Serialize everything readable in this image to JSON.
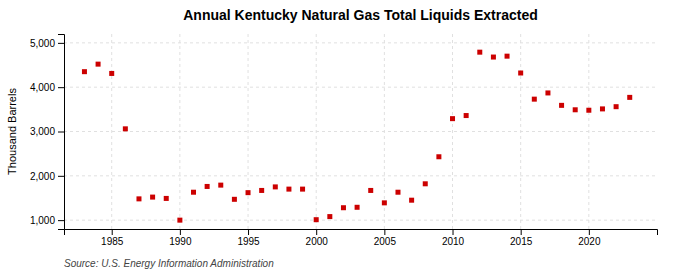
{
  "chart_data": {
    "type": "scatter",
    "title": "Annual Kentucky Natural Gas Total Liquids Extracted",
    "ylabel": "Thousand Barrels",
    "source": "Source: U.S. Energy Information Administration",
    "x": [
      1983,
      1984,
      1985,
      1986,
      1987,
      1988,
      1989,
      1990,
      1991,
      1992,
      1993,
      1994,
      1995,
      1996,
      1997,
      1998,
      1999,
      2000,
      2001,
      2002,
      2003,
      2004,
      2005,
      2006,
      2007,
      2008,
      2009,
      2010,
      2011,
      2012,
      2013,
      2014,
      2015,
      2016,
      2017,
      2018,
      2019,
      2020,
      2021,
      2022,
      2023
    ],
    "values": [
      4350,
      4520,
      4310,
      3060,
      1480,
      1520,
      1490,
      1000,
      1630,
      1760,
      1790,
      1470,
      1620,
      1670,
      1750,
      1700,
      1700,
      1010,
      1080,
      1280,
      1290,
      1670,
      1390,
      1630,
      1450,
      1820,
      2430,
      3290,
      3360,
      4790,
      4680,
      4700,
      4320,
      3730,
      3870,
      3590,
      3490,
      3480,
      3510,
      3560,
      3770
    ],
    "color": "#cc0000",
    "marker": "square",
    "xlim": [
      1981.5,
      2025
    ],
    "xticks": [
      1985,
      1990,
      1995,
      2000,
      2005,
      2010,
      2015,
      2020
    ],
    "ylim": [
      800,
      5200
    ],
    "yticks": [
      {
        "value": 1000,
        "label": "1,000"
      },
      {
        "value": 2000,
        "label": "2,000"
      },
      {
        "value": 3000,
        "label": "3,000"
      },
      {
        "value": 4000,
        "label": "4,000"
      },
      {
        "value": 5000,
        "label": "5,000"
      }
    ],
    "grid": true
  }
}
